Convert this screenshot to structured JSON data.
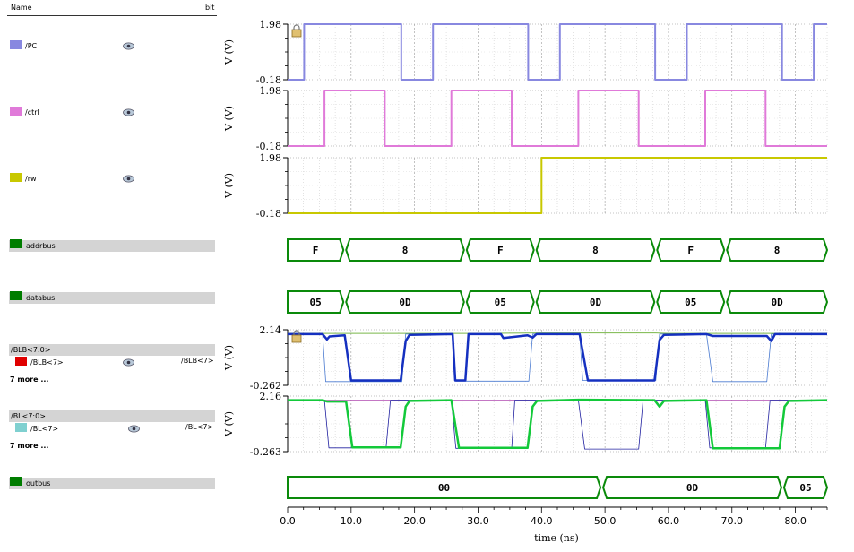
{
  "header": {
    "name": "Name",
    "bit": "bit"
  },
  "signals": [
    {
      "label": "/PC",
      "color": "#8888e0"
    },
    {
      "label": "/ctrl",
      "color": "#e07ad9"
    },
    {
      "label": "/rw",
      "color": "#c8c800"
    },
    {
      "label": "addrbus",
      "color": "#007d00"
    },
    {
      "label": "databus",
      "color": "#007d00"
    },
    {
      "group": "/BLB<7:0>",
      "label": "/BLB<7>",
      "right": "/BLB<7>",
      "color": "#e00000",
      "more": "7 more ..."
    },
    {
      "group": "/BL<7:0>",
      "label": "/BL<7>",
      "right": "/BL<7>",
      "color": "#7fd0d0",
      "more": "7 more ..."
    },
    {
      "label": "outbus",
      "color": "#007d00"
    }
  ],
  "chart_data": {
    "type": "line",
    "xlabel": "time (ns)",
    "xlim": [
      0,
      85
    ],
    "xticks": [
      "0.0",
      "10.0",
      "20.0",
      "30.0",
      "40.0",
      "50.0",
      "60.0",
      "70.0",
      "80.0"
    ],
    "analog": [
      {
        "name": "/PC",
        "ylabel": "V (V)",
        "ymax": "1.98",
        "ymin": "-0.18",
        "lock": true,
        "series": [
          {
            "color": "#8888e0",
            "width": 2,
            "x": [
              0,
              2.6,
              2.6,
              17.9,
              17.9,
              22.9,
              22.9,
              37.9,
              37.9,
              42.9,
              42.9,
              57.9,
              57.9,
              62.9,
              62.9,
              77.9,
              77.9,
              82.9,
              82.9,
              85
            ],
            "y": [
              -0.18,
              -0.18,
              1.98,
              1.98,
              -0.18,
              -0.18,
              1.98,
              1.98,
              -0.18,
              -0.18,
              1.98,
              1.98,
              -0.18,
              -0.18,
              1.98,
              1.98,
              -0.18,
              -0.18,
              1.98,
              1.98
            ]
          }
        ]
      },
      {
        "name": "/ctrl",
        "ylabel": "V (V)",
        "ymax": "1.98",
        "ymin": "-0.18",
        "lock": false,
        "series": [
          {
            "color": "#e07ad9",
            "width": 2,
            "x": [
              0,
              5.8,
              5.8,
              15.3,
              15.3,
              25.8,
              25.8,
              35.3,
              35.3,
              45.8,
              45.8,
              55.3,
              55.3,
              65.8,
              65.8,
              75.3,
              75.3,
              85
            ],
            "y": [
              -0.18,
              -0.18,
              1.98,
              1.98,
              -0.18,
              -0.18,
              1.98,
              1.98,
              -0.18,
              -0.18,
              1.98,
              1.98,
              -0.18,
              -0.18,
              1.98,
              1.98,
              -0.18,
              -0.18
            ]
          }
        ]
      },
      {
        "name": "/rw",
        "ylabel": "V (V)",
        "ymax": "1.98",
        "ymin": "-0.18",
        "lock": false,
        "series": [
          {
            "color": "#c8c800",
            "width": 2,
            "x": [
              0,
              40,
              40,
              85
            ],
            "y": [
              -0.18,
              -0.18,
              1.98,
              1.98
            ]
          }
        ]
      },
      {
        "name": "/BLB<7:0>",
        "ylabel": "V (V)",
        "ymax": "2.14",
        "ymin": "-0.262",
        "lock": true,
        "series": [
          {
            "color": "#7ab84a",
            "width": 1,
            "x": [
              0,
              10,
              20,
              30,
              40,
              50,
              58,
              60,
              70,
              85
            ],
            "y": [
              1.98,
              1.98,
              1.98,
              1.98,
              2.0,
              2.0,
              2.0,
              1.98,
              1.98,
              1.98
            ]
          },
          {
            "color": "#4a7ad0",
            "width": 0.8,
            "x": [
              0,
              5.5,
              6,
              18,
              18.6,
              26,
              26.5,
              38,
              38.6,
              46,
              46.5,
              58,
              58.6,
              66,
              67,
              75.5,
              76.2,
              85
            ],
            "y": [
              1.95,
              1.95,
              -0.1,
              -0.1,
              1.95,
              1.95,
              -0.08,
              -0.08,
              1.95,
              1.95,
              -0.05,
              -0.05,
              1.95,
              1.95,
              -0.1,
              -0.1,
              1.95,
              1.95
            ]
          },
          {
            "color": "#1530c0",
            "width": 2.5,
            "x": [
              0,
              5.5,
              6.2,
              6.6,
              9,
              10,
              17.8,
              18.6,
              19.2,
              26,
              26.4,
              28,
              28.5,
              33.6,
              34,
              37.8,
              38.6,
              39.2,
              46,
              47.3,
              57.8,
              58.6,
              59.3,
              66,
              67,
              75.5,
              76.2,
              76.8,
              85
            ],
            "y": [
              1.95,
              1.95,
              1.72,
              1.85,
              1.9,
              -0.05,
              -0.05,
              1.65,
              1.92,
              1.95,
              -0.05,
              -0.05,
              1.95,
              1.95,
              1.78,
              1.9,
              1.8,
              1.95,
              1.95,
              -0.05,
              -0.05,
              1.7,
              1.92,
              1.95,
              1.87,
              1.87,
              1.65,
              1.95,
              1.95
            ]
          }
        ]
      },
      {
        "name": "/BL<7:0>",
        "ylabel": "V (V)",
        "ymax": "2.16",
        "ymin": "-0.263",
        "lock": false,
        "series": [
          {
            "color": "#b04ab0",
            "width": 0.8,
            "x": [
              0,
              5.8,
              6,
              18,
              18.6,
              25.8,
              26,
              38,
              38.6,
              45.8,
              46,
              58,
              58.6,
              65.8,
              66,
              78,
              78.6,
              85
            ],
            "y": [
              1.98,
              1.98,
              1.98,
              1.98,
              1.98,
              1.98,
              1.98,
              1.98,
              1.98,
              1.98,
              1.98,
              1.98,
              1.98,
              1.98,
              1.98,
              1.98,
              1.98,
              1.98
            ]
          },
          {
            "color": "#2020a0",
            "width": 0.8,
            "x": [
              0,
              5.8,
              6.5,
              15.5,
              16.2,
              25.8,
              26.5,
              35.3,
              35.8,
              45.8,
              46.8,
              55.3,
              56,
              65.8,
              66.5,
              75.3,
              76,
              85
            ],
            "y": [
              1.98,
              1.98,
              -0.1,
              -0.1,
              1.98,
              1.98,
              -0.12,
              -0.12,
              1.98,
              1.98,
              -0.15,
              -0.15,
              1.98,
              1.98,
              -0.1,
              -0.1,
              1.98,
              1.98
            ]
          },
          {
            "color": "#13c93a",
            "width": 2.5,
            "x": [
              0,
              5.5,
              6.2,
              9.2,
              10.2,
              17.8,
              18.6,
              19.2,
              25.8,
              27,
              37.8,
              38.6,
              39.3,
              45.8,
              46.6,
              57.8,
              58.6,
              59.3,
              66,
              67,
              77.5,
              78.3,
              79,
              85
            ],
            "y": [
              1.98,
              1.98,
              1.92,
              1.92,
              -0.08,
              -0.08,
              1.7,
              1.95,
              1.98,
              -0.1,
              -0.1,
              1.7,
              1.95,
              2.0,
              2.0,
              1.98,
              1.7,
              1.95,
              1.98,
              -0.12,
              -0.12,
              1.7,
              1.95,
              1.98
            ]
          }
        ]
      }
    ],
    "digital": [
      {
        "name": "addrbus",
        "segments": [
          {
            "x0": 0,
            "x1": 9,
            "value": "F"
          },
          {
            "x0": 9,
            "x1": 28,
            "value": "8"
          },
          {
            "x0": 28,
            "x1": 39,
            "value": "F"
          },
          {
            "x0": 39,
            "x1": 58,
            "value": "8"
          },
          {
            "x0": 58,
            "x1": 69,
            "value": "F"
          },
          {
            "x0": 69,
            "x1": 85,
            "value": "8"
          }
        ]
      },
      {
        "name": "databus",
        "segments": [
          {
            "x0": 0,
            "x1": 9,
            "value": "05"
          },
          {
            "x0": 9,
            "x1": 28,
            "value": "0D"
          },
          {
            "x0": 28,
            "x1": 39,
            "value": "05"
          },
          {
            "x0": 39,
            "x1": 58,
            "value": "0D"
          },
          {
            "x0": 58,
            "x1": 69,
            "value": "05"
          },
          {
            "x0": 69,
            "x1": 85,
            "value": "0D"
          }
        ]
      },
      {
        "name": "outbus",
        "segments": [
          {
            "x0": 0,
            "x1": 49.5,
            "value": "00"
          },
          {
            "x0": 49.5,
            "x1": 78,
            "value": "0D"
          },
          {
            "x0": 78,
            "x1": 85,
            "value": "05"
          }
        ]
      }
    ]
  }
}
